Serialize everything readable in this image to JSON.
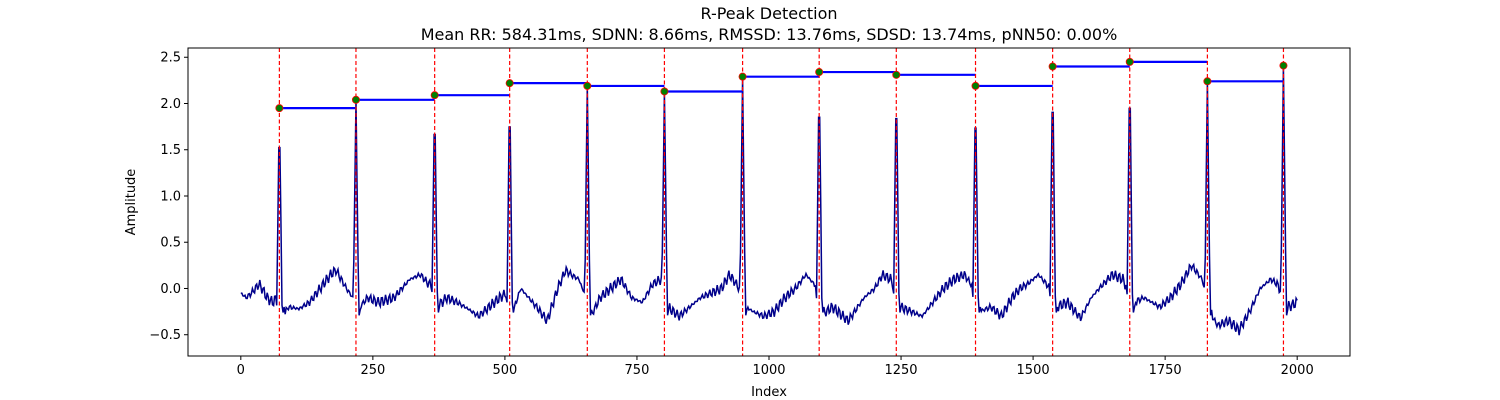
{
  "chart_data": {
    "type": "line",
    "title": "R-Peak Detection",
    "subtitle": "Mean RR: 584.31ms, SDNN: 8.66ms, RMSSD: 13.76ms, SDSD: 13.74ms, pNN50: 0.00%",
    "xlabel": "Index",
    "ylabel": "Amplitude",
    "xlim": [
      -100,
      2100
    ],
    "ylim": [
      -0.73,
      2.6
    ],
    "xticks": [
      0,
      250,
      500,
      750,
      1000,
      1250,
      1500,
      1750,
      2000
    ],
    "xtick_labels": [
      "0",
      "250",
      "500",
      "750",
      "1000",
      "1250",
      "1500",
      "1750",
      "2000"
    ],
    "yticks": [
      -0.5,
      0.0,
      0.5,
      1.0,
      1.5,
      2.0,
      2.5
    ],
    "ytick_labels": [
      "−0.5",
      "0.0",
      "0.5",
      "1.0",
      "1.5",
      "2.0",
      "2.5"
    ],
    "grid": false,
    "signal_length": 2000,
    "r_peaks": {
      "x": [
        73,
        218,
        367,
        509,
        656,
        802,
        950,
        1095,
        1241,
        1391,
        1537,
        1683,
        1830,
        1974
      ],
      "y": [
        1.95,
        2.04,
        2.09,
        2.22,
        2.19,
        2.13,
        2.29,
        2.34,
        2.31,
        2.19,
        2.4,
        2.45,
        2.24,
        2.41
      ]
    },
    "rr_segments": [
      {
        "x_start": 73,
        "x_end": 218,
        "y": 1.95
      },
      {
        "x_start": 218,
        "x_end": 367,
        "y": 2.04
      },
      {
        "x_start": 367,
        "x_end": 509,
        "y": 2.09
      },
      {
        "x_start": 509,
        "x_end": 656,
        "y": 2.22
      },
      {
        "x_start": 656,
        "x_end": 802,
        "y": 2.19
      },
      {
        "x_start": 802,
        "x_end": 950,
        "y": 2.13
      },
      {
        "x_start": 950,
        "x_end": 1095,
        "y": 2.29
      },
      {
        "x_start": 1095,
        "x_end": 1241,
        "y": 2.34
      },
      {
        "x_start": 1241,
        "x_end": 1391,
        "y": 2.31
      },
      {
        "x_start": 1391,
        "x_end": 1537,
        "y": 2.19
      },
      {
        "x_start": 1537,
        "x_end": 1683,
        "y": 2.4
      },
      {
        "x_start": 1683,
        "x_end": 1830,
        "y": 2.45
      },
      {
        "x_start": 1830,
        "x_end": 1974,
        "y": 2.24
      }
    ],
    "baseline_profile": {
      "x": [
        0,
        10,
        20,
        35,
        50,
        60,
        68,
        80,
        90,
        110,
        130,
        150,
        170,
        180,
        190,
        200,
        212,
        225,
        240,
        260,
        290,
        320,
        340,
        355,
        362,
        375,
        390,
        410,
        430,
        450,
        470,
        490,
        503,
        515,
        530,
        560,
        580,
        600,
        615,
        625,
        640,
        650,
        663,
        680,
        700,
        720,
        740,
        760,
        780,
        796,
        808,
        830,
        850,
        870,
        890,
        910,
        925,
        938,
        945,
        957,
        970,
        990,
        1010,
        1030,
        1050,
        1070,
        1085,
        1090,
        1102,
        1120,
        1150,
        1180,
        1200,
        1215,
        1230,
        1236,
        1248,
        1270,
        1290,
        1310,
        1330,
        1350,
        1370,
        1382,
        1387,
        1398,
        1420,
        1440,
        1460,
        1475,
        1490,
        1510,
        1525,
        1532,
        1544,
        1565,
        1590,
        1610,
        1625,
        1650,
        1670,
        1678,
        1690,
        1710,
        1740,
        1760,
        1780,
        1800,
        1820,
        1826,
        1838,
        1850,
        1870,
        1890,
        1910,
        1930,
        1950,
        1962,
        1970,
        1981,
        1990,
        2000
      ],
      "y": [
        -0.05,
        -0.1,
        -0.05,
        0.05,
        -0.1,
        -0.15,
        -0.1,
        -0.3,
        -0.2,
        -0.22,
        -0.15,
        0.0,
        0.15,
        0.2,
        0.1,
        0.0,
        -0.1,
        -0.2,
        -0.1,
        -0.15,
        -0.1,
        0.1,
        0.15,
        0.05,
        0.05,
        -0.18,
        -0.1,
        -0.15,
        -0.22,
        -0.3,
        -0.2,
        -0.1,
        -0.05,
        -0.25,
        0.0,
        -0.2,
        -0.35,
        0.0,
        0.2,
        0.15,
        0.1,
        -0.05,
        -0.3,
        -0.1,
        0.0,
        0.1,
        -0.1,
        -0.15,
        0.05,
        0.1,
        -0.2,
        -0.3,
        -0.2,
        -0.1,
        -0.05,
        0.0,
        0.15,
        0.05,
        -0.02,
        -0.2,
        -0.25,
        -0.3,
        -0.25,
        -0.1,
        0.0,
        0.15,
        0.05,
        0.02,
        -0.28,
        -0.2,
        -0.35,
        -0.1,
        0.0,
        0.15,
        0.1,
        0.05,
        -0.2,
        -0.25,
        -0.3,
        -0.15,
        0.0,
        0.1,
        0.15,
        0.05,
        0.0,
        -0.25,
        -0.2,
        -0.3,
        -0.1,
        0.0,
        0.05,
        0.15,
        0.05,
        0.0,
        -0.2,
        -0.15,
        -0.32,
        -0.1,
        0.0,
        0.15,
        0.1,
        0.0,
        -0.15,
        -0.1,
        -0.2,
        -0.1,
        0.05,
        0.25,
        0.1,
        -0.05,
        -0.3,
        -0.4,
        -0.35,
        -0.45,
        -0.25,
        0.0,
        0.1,
        0.05,
        -0.05,
        -0.2,
        -0.18,
        -0.15
      ]
    },
    "colors": {
      "signal": "#00008b",
      "rr_lines": "#0000ff",
      "peak_lines": "#ff0000",
      "peak_markers": "#008000",
      "peak_marker_edge": "#ff0000"
    }
  }
}
